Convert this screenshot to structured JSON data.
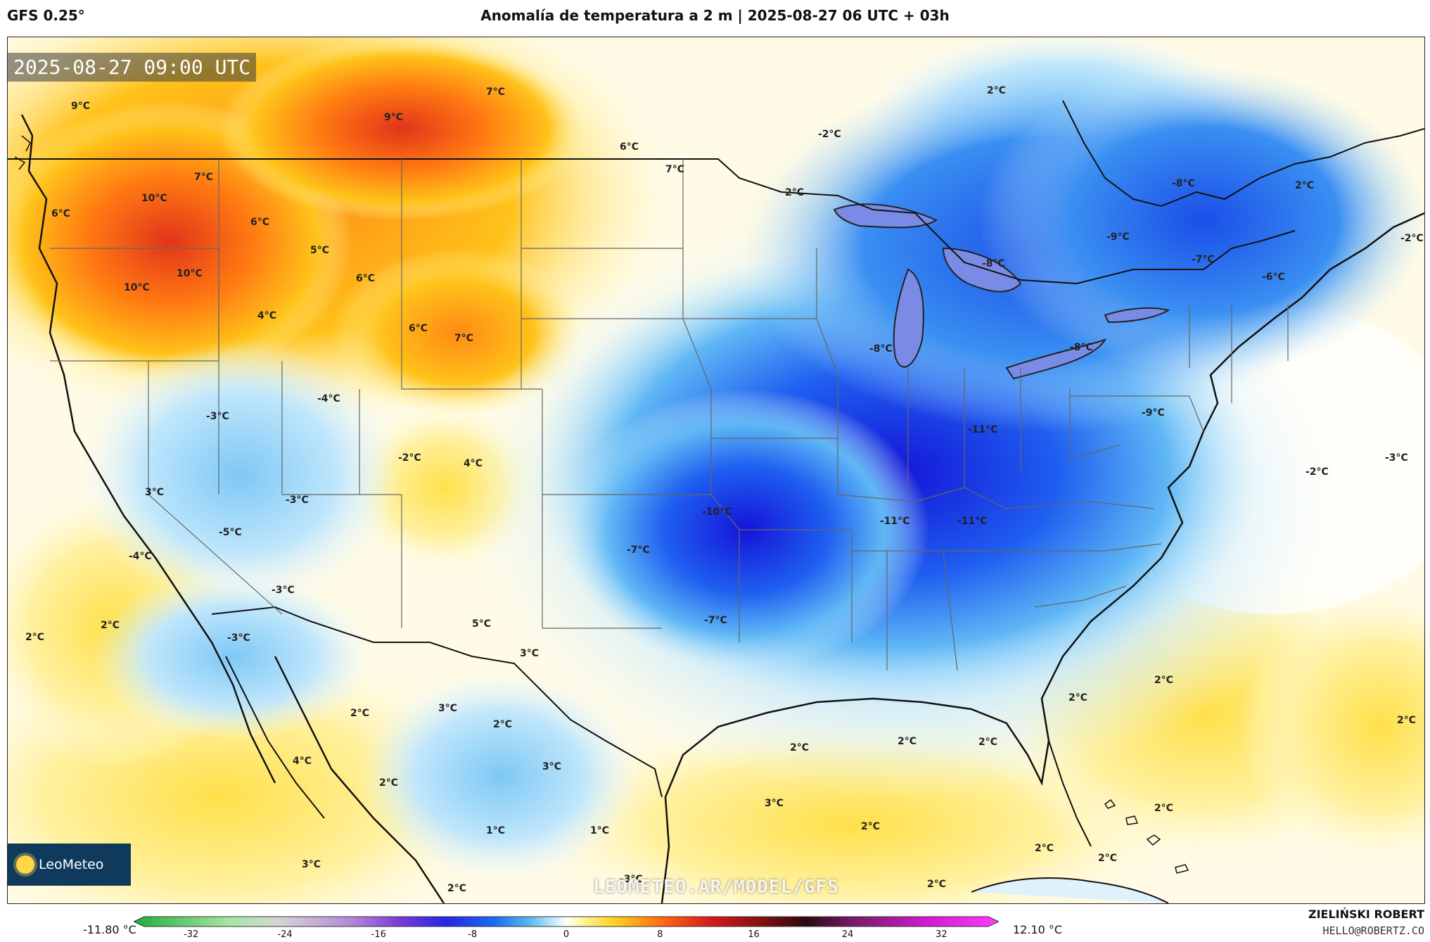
{
  "header": {
    "model": "GFS 0.25°",
    "title": "Anomalía de temperatura a 2 m | 2025-08-27 06 UTC + 03h"
  },
  "map": {
    "timestamp": "2025-08-27 09:00 UTC",
    "watermark": "LEOMETEO.AR/MODEL/GFS",
    "logo_text": "LeoMeteo",
    "labels": [
      {
        "text": "9°C"
      },
      {
        "text": "7°C"
      },
      {
        "text": "9°C"
      },
      {
        "text": "6°C"
      },
      {
        "text": "7°C"
      },
      {
        "text": "7°C"
      },
      {
        "text": "10°C"
      },
      {
        "text": "6°C"
      },
      {
        "text": "6°C"
      },
      {
        "text": "5°C"
      },
      {
        "text": "10°C"
      },
      {
        "text": "10°C"
      },
      {
        "text": "6°C"
      },
      {
        "text": "4°C"
      },
      {
        "text": "6°C"
      },
      {
        "text": "7°C"
      },
      {
        "text": "-4°C"
      },
      {
        "text": "-3°C"
      },
      {
        "text": "-2°C"
      },
      {
        "text": "4°C"
      },
      {
        "text": "3°C"
      },
      {
        "text": "-3°C"
      },
      {
        "text": "-5°C"
      },
      {
        "text": "-4°C"
      },
      {
        "text": "-3°C"
      },
      {
        "text": "5°C"
      },
      {
        "text": "3°C"
      },
      {
        "text": "2°C"
      },
      {
        "text": "2°C"
      },
      {
        "text": "-3°C"
      },
      {
        "text": "2°C"
      },
      {
        "text": "3°C"
      },
      {
        "text": "2°C"
      },
      {
        "text": "4°C"
      },
      {
        "text": "2°C"
      },
      {
        "text": "3°C"
      },
      {
        "text": "1°C"
      },
      {
        "text": "1°C"
      },
      {
        "text": "3°C"
      },
      {
        "text": "2°C"
      },
      {
        "text": "-3°C"
      },
      {
        "text": "2°C"
      },
      {
        "text": "-2°C"
      },
      {
        "text": "2°C"
      },
      {
        "text": "-8°C"
      },
      {
        "text": "-9°C"
      },
      {
        "text": "-7°C"
      },
      {
        "text": "-6°C"
      },
      {
        "text": "-8°C"
      },
      {
        "text": "-8°C"
      },
      {
        "text": "-8°C"
      },
      {
        "text": "-11°C"
      },
      {
        "text": "-9°C"
      },
      {
        "text": "-10°C"
      },
      {
        "text": "-11°C"
      },
      {
        "text": "-11°C"
      },
      {
        "text": "-7°C"
      },
      {
        "text": "-7°C"
      },
      {
        "text": "2°C"
      },
      {
        "text": "-2°C"
      },
      {
        "text": "-2°C"
      },
      {
        "text": "-3°C"
      },
      {
        "text": "2°C"
      },
      {
        "text": "2°C"
      },
      {
        "text": "2°C"
      },
      {
        "text": "2°C"
      },
      {
        "text": "2°C"
      },
      {
        "text": "2°C"
      },
      {
        "text": "3°C"
      },
      {
        "text": "2°C"
      },
      {
        "text": "2°C"
      },
      {
        "text": "2°C"
      },
      {
        "text": "2°C"
      },
      {
        "text": "2°C"
      }
    ]
  },
  "legend": {
    "min_label": "-11.80 °C",
    "max_label": "12.10 °C",
    "ticks": [
      "-32",
      "-24",
      "-16",
      "-8",
      "0",
      "8",
      "16",
      "24",
      "32"
    ],
    "range": [
      -36,
      36
    ],
    "stops": [
      {
        "v": -36,
        "c": "#1fae3a"
      },
      {
        "v": -28,
        "c": "#a8e6a2"
      },
      {
        "v": -24,
        "c": "#d5d5d5"
      },
      {
        "v": -18,
        "c": "#b58ad8"
      },
      {
        "v": -14,
        "c": "#7c3cd8"
      },
      {
        "v": -10,
        "c": "#2525e8"
      },
      {
        "v": -6,
        "c": "#1a6cf0"
      },
      {
        "v": -3,
        "c": "#5ab9f2"
      },
      {
        "v": -1,
        "c": "#c8eafb"
      },
      {
        "v": 0,
        "c": "#ffffff"
      },
      {
        "v": 1,
        "c": "#fff7b0"
      },
      {
        "v": 4,
        "c": "#ffd21f"
      },
      {
        "v": 8,
        "c": "#ff6a12"
      },
      {
        "v": 12,
        "c": "#d81a1a"
      },
      {
        "v": 16,
        "c": "#8a1010"
      },
      {
        "v": 20,
        "c": "#2a0a12"
      },
      {
        "v": 24,
        "c": "#7a1a6a"
      },
      {
        "v": 30,
        "c": "#d21ad2"
      },
      {
        "v": 36,
        "c": "#ff3cff"
      }
    ]
  },
  "credits": {
    "author": "ZIELIŃSKI ROBERT",
    "email": "HELLO@ROBERTZ.CO"
  }
}
